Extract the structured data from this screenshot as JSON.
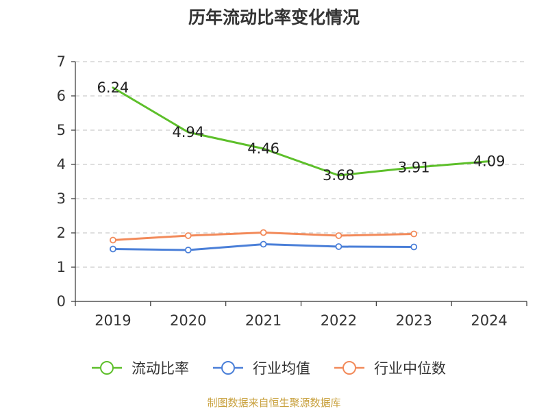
{
  "title": "历年流动比率变化情况",
  "source": "制图数据来自恒生聚源数据库",
  "colors": {
    "current_ratio": "#5dbf2a",
    "industry_avg": "#4a7fd8",
    "industry_median": "#f28a5a",
    "grid": "#cccccc",
    "axis": "#333333"
  },
  "chart_data": {
    "type": "line",
    "title": "历年流动比率变化情况",
    "categories": [
      "2019",
      "2020",
      "2021",
      "2022",
      "2023",
      "2024"
    ],
    "ylim": [
      0,
      7
    ],
    "yticks": [
      0,
      1,
      2,
      3,
      4,
      5,
      6,
      7
    ],
    "grid": true,
    "legend_position": "bottom",
    "series": [
      {
        "name": "流动比率",
        "values": [
          6.24,
          4.94,
          4.46,
          3.68,
          3.91,
          4.09
        ],
        "labels": [
          "6.24",
          "4.94",
          "4.46",
          "3.68",
          "3.91",
          "4.09"
        ],
        "color_key": "current_ratio"
      },
      {
        "name": "行业均值",
        "values": [
          1.53,
          1.5,
          1.67,
          1.6,
          1.59,
          null
        ],
        "color_key": "industry_avg"
      },
      {
        "name": "行业中位数",
        "values": [
          1.79,
          1.92,
          2.01,
          1.92,
          1.97,
          null
        ],
        "color_key": "industry_median"
      }
    ]
  }
}
